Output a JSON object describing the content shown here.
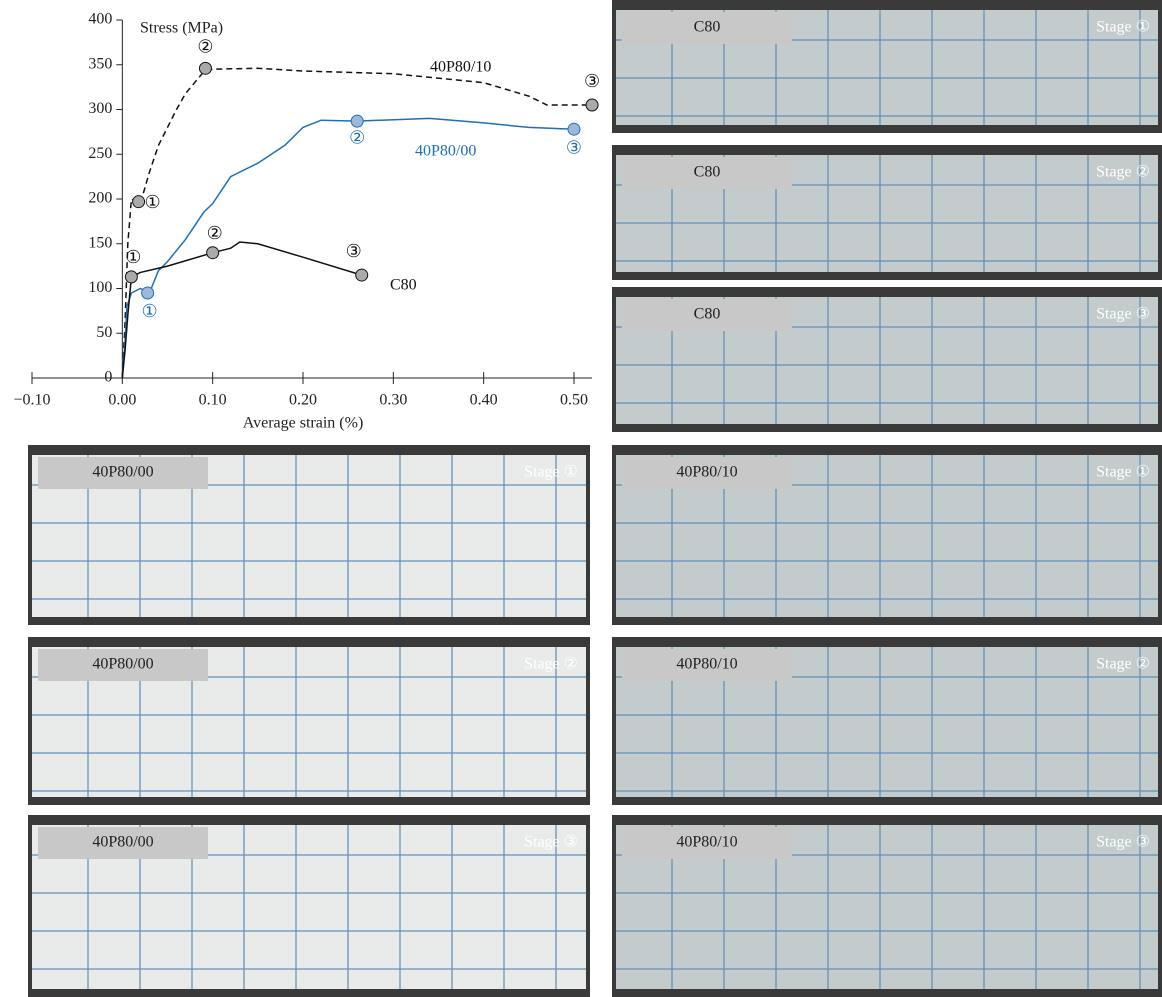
{
  "chart_data": {
    "type": "line",
    "x_label": "Average strain (%)",
    "y_label": "Stress (MPa)",
    "xlim": [
      -0.1,
      0.52
    ],
    "ylim": [
      0,
      400
    ],
    "xticks": [
      {
        "value": -0.1,
        "label": "−0.10"
      },
      {
        "value": 0,
        "label": "0.00"
      },
      {
        "value": 0.1,
        "label": "0.10"
      },
      {
        "value": 0.2,
        "label": "0.20"
      },
      {
        "value": 0.3,
        "label": "0.30"
      },
      {
        "value": 0.4,
        "label": "0.40"
      },
      {
        "value": 0.5,
        "label": "0.50"
      }
    ],
    "yticks": [
      0,
      50,
      100,
      150,
      200,
      250,
      300,
      350,
      400
    ],
    "series": [
      {
        "name": "40P80/10",
        "color": "#111111",
        "dashed": true,
        "x": [
          0,
          0.003,
          0.006,
          0.01,
          0.02,
          0.03,
          0.04,
          0.05,
          0.06,
          0.07,
          0.08,
          0.09,
          0.1,
          0.15,
          0.2,
          0.3,
          0.4,
          0.45,
          0.47,
          0.52
        ],
        "values": [
          0,
          60,
          150,
          200,
          195,
          230,
          260,
          280,
          300,
          318,
          330,
          342,
          345,
          346,
          343,
          340,
          330,
          315,
          305,
          305
        ],
        "markers": {
          "x": [
            0.018,
            0.092,
            0.52
          ],
          "y": [
            197,
            346,
            305
          ],
          "labels": [
            "①",
            "②",
            "③"
          ]
        }
      },
      {
        "name": "40P80/00",
        "color": "#1f6fb5",
        "dashed": false,
        "x": [
          0,
          0.003,
          0.005,
          0.01,
          0.02,
          0.03,
          0.04,
          0.05,
          0.07,
          0.09,
          0.1,
          0.12,
          0.15,
          0.18,
          0.2,
          0.22,
          0.26,
          0.34,
          0.4,
          0.45,
          0.5
        ],
        "values": [
          0,
          40,
          80,
          95,
          100,
          95,
          120,
          130,
          155,
          185,
          195,
          225,
          240,
          260,
          280,
          288,
          287,
          290,
          285,
          280,
          278
        ],
        "markers": {
          "x": [
            0.028,
            0.26,
            0.5
          ],
          "y": [
            95,
            287,
            278
          ],
          "labels": [
            "①",
            "②",
            "③"
          ]
        }
      },
      {
        "name": "C80",
        "color": "#111111",
        "dashed": false,
        "x": [
          0,
          0.003,
          0.006,
          0.01,
          0.02,
          0.05,
          0.1,
          0.12,
          0.13,
          0.15,
          0.2,
          0.265
        ],
        "values": [
          0,
          30,
          70,
          113,
          118,
          125,
          140,
          145,
          152,
          150,
          135,
          115
        ],
        "markers": {
          "x": [
            0.01,
            0.1,
            0.265
          ],
          "y": [
            113,
            140,
            115
          ],
          "labels": [
            "①",
            "②",
            "③"
          ]
        }
      }
    ]
  },
  "panels": [
    {
      "label": "C80",
      "stage": "Stage ①"
    },
    {
      "label": "C80",
      "stage": "Stage ②"
    },
    {
      "label": "C80",
      "stage": "Stage ③"
    },
    {
      "label": "40P80/00",
      "stage": "Stage ①"
    },
    {
      "label": "40P80/10",
      "stage": "Stage ①"
    },
    {
      "label": "40P80/00",
      "stage": "Stage ②"
    },
    {
      "label": "40P80/10",
      "stage": "Stage ②"
    },
    {
      "label": "40P80/00",
      "stage": "Stage ③"
    },
    {
      "label": "40P80/10",
      "stage": "Stage ③"
    }
  ]
}
